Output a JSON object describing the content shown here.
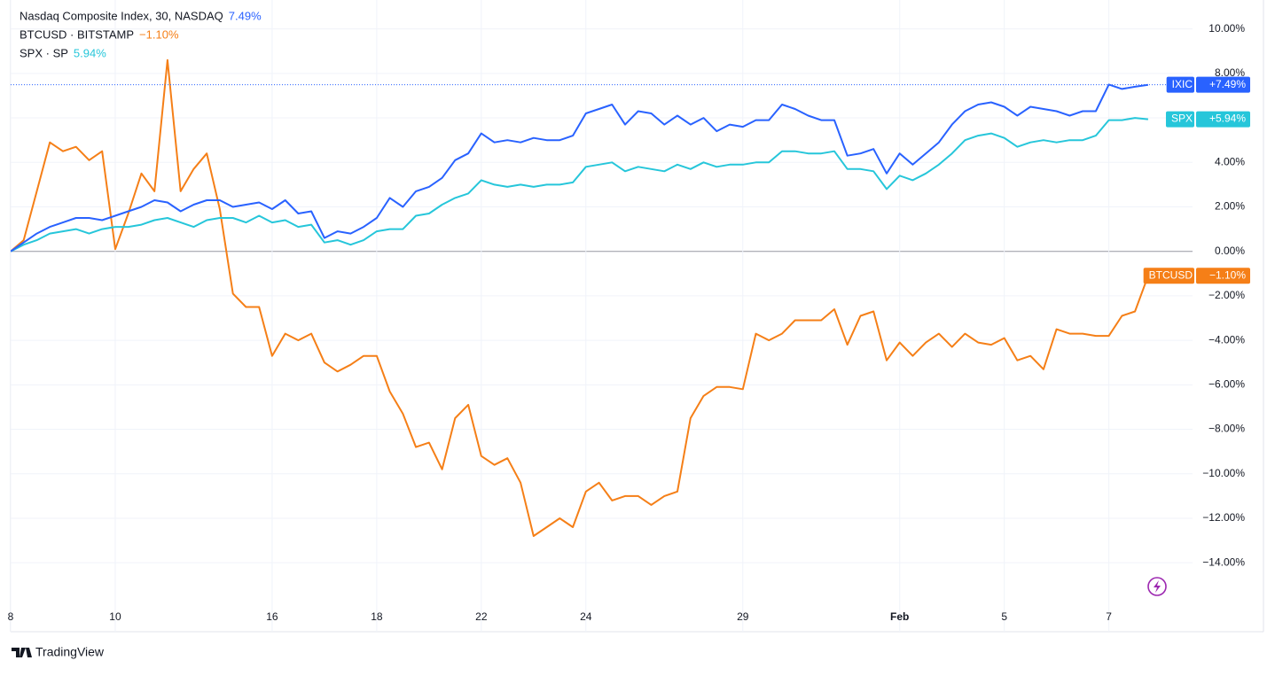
{
  "chart_data": {
    "type": "line",
    "brand": "TradingView",
    "x": [
      0,
      0.25,
      0.5,
      0.75,
      1,
      1.25,
      1.5,
      1.75,
      2,
      2.25,
      2.5,
      2.75,
      3,
      3.25,
      3.5,
      3.75,
      4,
      4.25,
      4.5,
      4.75,
      5,
      5.25,
      5.5,
      5.75,
      6,
      6.25,
      6.5,
      6.75,
      7,
      7.25,
      7.5,
      7.75,
      8,
      8.25,
      8.5,
      8.75,
      9,
      9.25,
      9.5,
      9.75,
      10,
      10.25,
      10.5,
      10.75,
      11,
      11.25,
      11.5,
      11.75,
      12,
      12.25,
      12.5,
      12.75,
      13,
      13.25,
      13.5,
      13.75,
      14,
      14.25,
      14.5,
      14.75,
      15,
      15.25,
      15.5,
      15.75,
      16,
      16.25,
      16.5,
      16.75,
      17,
      17.25,
      17.5,
      17.75,
      18,
      18.25,
      18.5,
      18.75,
      19,
      19.25,
      19.5,
      19.75,
      20,
      20.25,
      20.5,
      20.75,
      21,
      21.25,
      21.5,
      21.75
    ],
    "series": [
      {
        "name": "Nasdaq Composite Index, 30, NASDAQ",
        "symbol": "IXIC",
        "value_label": "7.49%",
        "tag_label": "+7.49%",
        "color": "#2962ff",
        "values": [
          0,
          0.4,
          0.8,
          1.1,
          1.3,
          1.5,
          1.5,
          1.4,
          1.6,
          1.8,
          2.0,
          2.3,
          2.2,
          1.8,
          2.1,
          2.3,
          2.3,
          2.0,
          2.1,
          2.2,
          1.9,
          2.3,
          1.7,
          1.8,
          0.6,
          0.9,
          0.8,
          1.1,
          1.5,
          2.4,
          2.0,
          2.7,
          2.9,
          3.3,
          4.1,
          4.4,
          5.3,
          4.9,
          5.0,
          4.9,
          5.1,
          5.0,
          5.0,
          5.2,
          6.2,
          6.4,
          6.6,
          5.7,
          6.3,
          6.2,
          5.7,
          6.1,
          5.7,
          6.0,
          5.4,
          5.7,
          5.6,
          5.9,
          5.9,
          6.6,
          6.4,
          6.1,
          5.9,
          5.9,
          4.3,
          4.4,
          4.6,
          3.5,
          4.4,
          3.9,
          4.4,
          4.9,
          5.7,
          6.3,
          6.6,
          6.7,
          6.5,
          6.1,
          6.5,
          6.4,
          6.3,
          6.1,
          6.3,
          6.3,
          7.5,
          7.3,
          7.4,
          7.49
        ]
      },
      {
        "name": "BTCUSD · BITSTAMP",
        "symbol": "BTCUSD",
        "value_label": "−1.10%",
        "tag_label": "−1.10%",
        "color": "#f57f17",
        "values": [
          0,
          0.5,
          2.7,
          4.9,
          4.5,
          4.7,
          4.1,
          4.5,
          0.1,
          1.7,
          3.5,
          2.7,
          8.6,
          2.7,
          3.7,
          4.4,
          1.9,
          -1.9,
          -2.5,
          -2.5,
          -4.7,
          -3.7,
          -4.0,
          -3.7,
          -5.0,
          -5.4,
          -5.1,
          -4.7,
          -4.7,
          -6.3,
          -7.3,
          -8.8,
          -8.6,
          -9.8,
          -7.5,
          -6.9,
          -9.2,
          -9.6,
          -9.3,
          -10.4,
          -12.8,
          -12.4,
          -12.0,
          -12.4,
          -10.8,
          -10.4,
          -11.2,
          -11.0,
          -11.0,
          -11.4,
          -11.0,
          -10.8,
          -7.5,
          -6.5,
          -6.1,
          -6.1,
          -6.2,
          -3.7,
          -4.0,
          -3.7,
          -3.1,
          -3.1,
          -3.1,
          -2.6,
          -4.2,
          -2.9,
          -2.7,
          -4.9,
          -4.1,
          -4.7,
          -4.1,
          -3.7,
          -4.3,
          -3.7,
          -4.1,
          -4.2,
          -3.9,
          -4.9,
          -4.7,
          -5.3,
          -3.5,
          -3.7,
          -3.7,
          -3.8,
          -3.8,
          -2.9,
          -2.7,
          -1.1
        ]
      },
      {
        "name": "SPX · SP",
        "symbol": "SPX",
        "value_label": "5.94%",
        "tag_label": "+5.94%",
        "color": "#26c6da",
        "values": [
          0,
          0.3,
          0.5,
          0.8,
          0.9,
          1.0,
          0.8,
          1.0,
          1.1,
          1.1,
          1.2,
          1.4,
          1.5,
          1.3,
          1.1,
          1.4,
          1.5,
          1.5,
          1.3,
          1.6,
          1.3,
          1.4,
          1.1,
          1.2,
          0.4,
          0.5,
          0.3,
          0.5,
          0.9,
          1.0,
          1.0,
          1.6,
          1.7,
          2.1,
          2.4,
          2.6,
          3.2,
          3.0,
          2.9,
          3.0,
          2.9,
          3.0,
          3.0,
          3.1,
          3.8,
          3.9,
          4.0,
          3.6,
          3.8,
          3.7,
          3.6,
          3.9,
          3.7,
          4.0,
          3.8,
          3.9,
          3.9,
          4.0,
          4.0,
          4.5,
          4.5,
          4.4,
          4.4,
          4.5,
          3.7,
          3.7,
          3.6,
          2.8,
          3.4,
          3.2,
          3.5,
          3.9,
          4.4,
          5.0,
          5.2,
          5.3,
          5.1,
          4.7,
          4.9,
          5.0,
          4.9,
          5.0,
          5.0,
          5.2,
          5.9,
          5.9,
          6.0,
          5.94
        ]
      }
    ],
    "xlim": [
      0,
      22.6
    ],
    "xticks": [
      {
        "value": 0,
        "label": "8"
      },
      {
        "value": 2,
        "label": "10"
      },
      {
        "value": 5,
        "label": "16"
      },
      {
        "value": 7,
        "label": "18"
      },
      {
        "value": 9,
        "label": "22"
      },
      {
        "value": 11,
        "label": "24"
      },
      {
        "value": 14,
        "label": "29"
      },
      {
        "value": 17,
        "label": "Feb"
      },
      {
        "value": 19,
        "label": "5"
      },
      {
        "value": 21,
        "label": "7"
      }
    ],
    "ylim": [
      -17.1,
      11.3
    ],
    "yticks": [
      {
        "value": -14,
        "label": "−14.00%"
      },
      {
        "value": -12,
        "label": "−12.00%"
      },
      {
        "value": -10,
        "label": "−10.00%"
      },
      {
        "value": -8,
        "label": "−8.00%"
      },
      {
        "value": -6,
        "label": "−6.00%"
      },
      {
        "value": -4,
        "label": "−4.00%"
      },
      {
        "value": -2,
        "label": "−2.00%"
      },
      {
        "value": 0,
        "label": "0.00%"
      },
      {
        "value": 2,
        "label": "2.00%"
      },
      {
        "value": 4,
        "label": "4.00%"
      },
      {
        "value": 6,
        "label": "6.00%"
      },
      {
        "value": 8,
        "label": "8.00%"
      },
      {
        "value": 10,
        "label": "10.00%"
      }
    ],
    "grid": true
  }
}
